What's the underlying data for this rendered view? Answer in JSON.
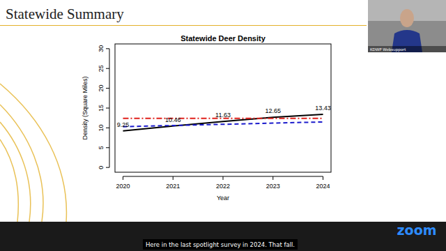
{
  "slide": {
    "title": "Statewide Summary"
  },
  "chart_data": {
    "type": "line",
    "title": "Statewide Deer Density",
    "x_label": "Year",
    "y_label": "Density (Square Miles)",
    "x": [
      2020,
      2021,
      2022,
      2023,
      2024
    ],
    "xlim": [
      2019.84,
      2024.16
    ],
    "xticks": [
      2020,
      2021,
      2022,
      2023,
      2024
    ],
    "ylim": [
      -1.2,
      31.2
    ],
    "yticks": [
      0,
      5,
      10,
      15,
      20,
      25,
      30
    ],
    "series": [
      {
        "color": "#000000",
        "line_style": "solid",
        "data_labels": true,
        "values": [
          9.25,
          10.46,
          11.63,
          12.65,
          13.43
        ]
      },
      {
        "color": "#e0201b",
        "line_style": "dashdot",
        "values": [
          12.4,
          12.4,
          12.4,
          12.4,
          12.4
        ]
      },
      {
        "color": "#1a1acc",
        "line_style": "dashed",
        "values": [
          10.3,
          10.6,
          10.9,
          11.2,
          11.5
        ]
      }
    ]
  },
  "webcam": {
    "label": "KDWP Websupport"
  },
  "caption": "Here in the last spotlight survey in 2024. That fall.",
  "logo": "zoom"
}
